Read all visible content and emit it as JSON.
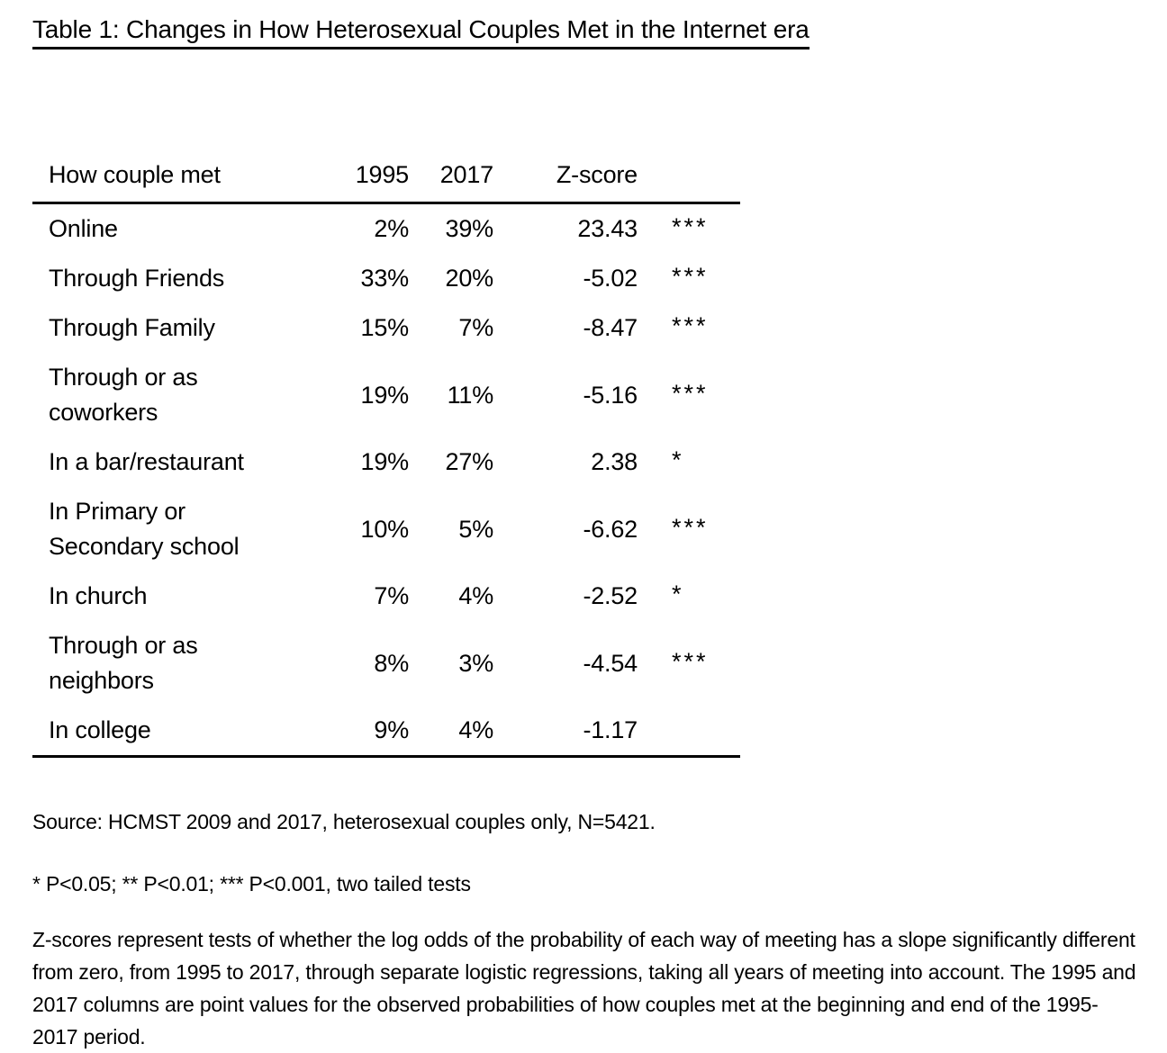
{
  "title": "Table 1: Changes in How Heterosexual Couples Met in the Internet era",
  "table": {
    "columns": [
      "How couple met",
      "1995",
      "2017",
      "Z-score",
      ""
    ],
    "rows": [
      {
        "method": "Online",
        "pct_1995": "2%",
        "pct_2017": "39%",
        "z_score": "23.43",
        "significance": "***"
      },
      {
        "method": "Through Friends",
        "pct_1995": "33%",
        "pct_2017": "20%",
        "z_score": "-5.02",
        "significance": "***"
      },
      {
        "method": "Through Family",
        "pct_1995": "15%",
        "pct_2017": "7%",
        "z_score": "-8.47",
        "significance": "***"
      },
      {
        "method": "Through or as coworkers",
        "pct_1995": "19%",
        "pct_2017": "11%",
        "z_score": "-5.16",
        "significance": "***"
      },
      {
        "method": "In a bar/restaurant",
        "pct_1995": "19%",
        "pct_2017": "27%",
        "z_score": "2.38",
        "significance": "*"
      },
      {
        "method": "In Primary or Secondary school",
        "pct_1995": "10%",
        "pct_2017": "5%",
        "z_score": "-6.62",
        "significance": "***"
      },
      {
        "method": "In church",
        "pct_1995": "7%",
        "pct_2017": "4%",
        "z_score": "-2.52",
        "significance": "*"
      },
      {
        "method": "Through or as neighbors",
        "pct_1995": "8%",
        "pct_2017": "3%",
        "z_score": "-4.54",
        "significance": "***"
      },
      {
        "method": "In college",
        "pct_1995": "9%",
        "pct_2017": "4%",
        "z_score": "-1.17",
        "significance": ""
      }
    ]
  },
  "notes": {
    "source": "Source: HCMST 2009 and 2017, heterosexual couples only, N=5421.",
    "significance_key": "* P<0.05; ** P<0.01; *** P<0.001, two tailed tests",
    "description": "Z-scores represent tests of whether the log odds of the probability of each way of meeting has a slope significantly different from zero, from 1995 to 2017, through separate logistic regressions, taking all years of meeting into account. The 1995 and 2017 columns are point values for the observed probabilities of how couples met at the beginning and end of the 1995-2017 period."
  },
  "colors": {
    "text": "#000000",
    "background": "#ffffff",
    "rule": "#000000"
  }
}
